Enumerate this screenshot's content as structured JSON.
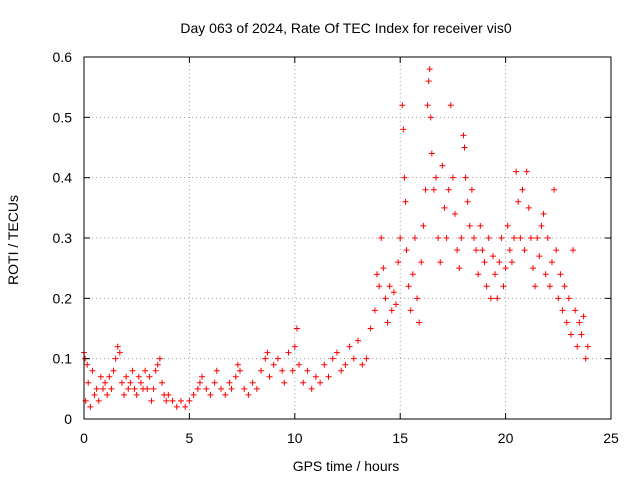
{
  "chart_data": {
    "type": "scatter",
    "title": "Day 063 of 2024, Rate Of TEC Index for receiver vis0",
    "xlabel": "GPS time / hours",
    "ylabel": "ROTI / TECUs",
    "xlim": [
      0,
      25
    ],
    "ylim": [
      0,
      0.6
    ],
    "xticks": [
      0,
      5,
      10,
      15,
      20,
      25
    ],
    "yticks": [
      0,
      0.1,
      0.2,
      0.3,
      0.4,
      0.5,
      0.6
    ],
    "xtick_labels": [
      "0",
      "5",
      "10",
      "15",
      "20",
      "25"
    ],
    "ytick_labels": [
      "0",
      "0.1",
      "0.2",
      "0.3",
      "0.4",
      "0.5",
      "0.6"
    ],
    "grid": true,
    "marker": "+",
    "color": "#ff0000",
    "series": [
      {
        "name": "ROTI",
        "points": [
          [
            0.0,
            0.11
          ],
          [
            0.05,
            0.1
          ],
          [
            0.08,
            0.03
          ],
          [
            0.15,
            0.09
          ],
          [
            0.2,
            0.06
          ],
          [
            0.3,
            0.02
          ],
          [
            0.4,
            0.08
          ],
          [
            0.5,
            0.04
          ],
          [
            0.6,
            0.05
          ],
          [
            0.7,
            0.03
          ],
          [
            0.8,
            0.07
          ],
          [
            0.9,
            0.05
          ],
          [
            1.0,
            0.06
          ],
          [
            1.1,
            0.04
          ],
          [
            1.2,
            0.07
          ],
          [
            1.3,
            0.05
          ],
          [
            1.4,
            0.08
          ],
          [
            1.5,
            0.1
          ],
          [
            1.6,
            0.12
          ],
          [
            1.7,
            0.11
          ],
          [
            1.8,
            0.06
          ],
          [
            1.9,
            0.04
          ],
          [
            2.0,
            0.07
          ],
          [
            2.1,
            0.05
          ],
          [
            2.2,
            0.06
          ],
          [
            2.3,
            0.08
          ],
          [
            2.4,
            0.05
          ],
          [
            2.5,
            0.04
          ],
          [
            2.6,
            0.07
          ],
          [
            2.7,
            0.06
          ],
          [
            2.8,
            0.05
          ],
          [
            2.9,
            0.08
          ],
          [
            3.0,
            0.05
          ],
          [
            3.1,
            0.07
          ],
          [
            3.2,
            0.03
          ],
          [
            3.3,
            0.05
          ],
          [
            3.4,
            0.08
          ],
          [
            3.5,
            0.09
          ],
          [
            3.6,
            0.1
          ],
          [
            3.7,
            0.06
          ],
          [
            3.8,
            0.04
          ],
          [
            3.9,
            0.03
          ],
          [
            4.0,
            0.04
          ],
          [
            4.2,
            0.03
          ],
          [
            4.4,
            0.02
          ],
          [
            4.6,
            0.03
          ],
          [
            4.8,
            0.02
          ],
          [
            5.0,
            0.03
          ],
          [
            5.2,
            0.04
          ],
          [
            5.4,
            0.05
          ],
          [
            5.5,
            0.06
          ],
          [
            5.6,
            0.07
          ],
          [
            5.8,
            0.05
          ],
          [
            6.0,
            0.04
          ],
          [
            6.2,
            0.06
          ],
          [
            6.3,
            0.08
          ],
          [
            6.5,
            0.05
          ],
          [
            6.7,
            0.04
          ],
          [
            6.9,
            0.06
          ],
          [
            7.0,
            0.05
          ],
          [
            7.2,
            0.07
          ],
          [
            7.3,
            0.09
          ],
          [
            7.4,
            0.08
          ],
          [
            7.6,
            0.05
          ],
          [
            7.8,
            0.04
          ],
          [
            8.0,
            0.06
          ],
          [
            8.2,
            0.05
          ],
          [
            8.4,
            0.08
          ],
          [
            8.6,
            0.1
          ],
          [
            8.7,
            0.11
          ],
          [
            8.8,
            0.07
          ],
          [
            9.0,
            0.09
          ],
          [
            9.2,
            0.1
          ],
          [
            9.4,
            0.08
          ],
          [
            9.5,
            0.06
          ],
          [
            9.7,
            0.11
          ],
          [
            9.9,
            0.08
          ],
          [
            10.0,
            0.12
          ],
          [
            10.1,
            0.15
          ],
          [
            10.2,
            0.09
          ],
          [
            10.4,
            0.06
          ],
          [
            10.6,
            0.08
          ],
          [
            10.8,
            0.05
          ],
          [
            11.0,
            0.07
          ],
          [
            11.2,
            0.06
          ],
          [
            11.4,
            0.09
          ],
          [
            11.6,
            0.07
          ],
          [
            11.8,
            0.1
          ],
          [
            12.0,
            0.11
          ],
          [
            12.2,
            0.08
          ],
          [
            12.4,
            0.09
          ],
          [
            12.6,
            0.12
          ],
          [
            12.8,
            0.1
          ],
          [
            13.0,
            0.13
          ],
          [
            13.2,
            0.09
          ],
          [
            13.4,
            0.1
          ],
          [
            13.6,
            0.15
          ],
          [
            13.8,
            0.18
          ],
          [
            13.9,
            0.24
          ],
          [
            14.0,
            0.22
          ],
          [
            14.1,
            0.3
          ],
          [
            14.2,
            0.25
          ],
          [
            14.3,
            0.2
          ],
          [
            14.4,
            0.16
          ],
          [
            14.5,
            0.22
          ],
          [
            14.6,
            0.18
          ],
          [
            14.7,
            0.21
          ],
          [
            14.8,
            0.19
          ],
          [
            14.9,
            0.26
          ],
          [
            15.0,
            0.3
          ],
          [
            15.1,
            0.52
          ],
          [
            15.15,
            0.48
          ],
          [
            15.2,
            0.4
          ],
          [
            15.25,
            0.36
          ],
          [
            15.3,
            0.28
          ],
          [
            15.4,
            0.22
          ],
          [
            15.5,
            0.18
          ],
          [
            15.6,
            0.24
          ],
          [
            15.7,
            0.3
          ],
          [
            15.8,
            0.2
          ],
          [
            15.9,
            0.16
          ],
          [
            16.0,
            0.26
          ],
          [
            16.1,
            0.32
          ],
          [
            16.2,
            0.38
          ],
          [
            16.3,
            0.52
          ],
          [
            16.35,
            0.56
          ],
          [
            16.4,
            0.58
          ],
          [
            16.45,
            0.5
          ],
          [
            16.5,
            0.44
          ],
          [
            16.6,
            0.38
          ],
          [
            16.7,
            0.4
          ],
          [
            16.8,
            0.3
          ],
          [
            16.9,
            0.26
          ],
          [
            17.0,
            0.42
          ],
          [
            17.1,
            0.35
          ],
          [
            17.2,
            0.3
          ],
          [
            17.3,
            0.38
          ],
          [
            17.4,
            0.52
          ],
          [
            17.5,
            0.4
          ],
          [
            17.6,
            0.34
          ],
          [
            17.7,
            0.28
          ],
          [
            17.8,
            0.25
          ],
          [
            17.9,
            0.3
          ],
          [
            18.0,
            0.47
          ],
          [
            18.05,
            0.45
          ],
          [
            18.1,
            0.4
          ],
          [
            18.2,
            0.36
          ],
          [
            18.3,
            0.32
          ],
          [
            18.4,
            0.38
          ],
          [
            18.5,
            0.3
          ],
          [
            18.6,
            0.28
          ],
          [
            18.7,
            0.24
          ],
          [
            18.8,
            0.32
          ],
          [
            18.9,
            0.28
          ],
          [
            19.0,
            0.26
          ],
          [
            19.1,
            0.22
          ],
          [
            19.2,
            0.3
          ],
          [
            19.3,
            0.2
          ],
          [
            19.4,
            0.27
          ],
          [
            19.5,
            0.24
          ],
          [
            19.6,
            0.2
          ],
          [
            19.7,
            0.26
          ],
          [
            19.8,
            0.3
          ],
          [
            19.9,
            0.22
          ],
          [
            20.0,
            0.25
          ],
          [
            20.1,
            0.32
          ],
          [
            20.2,
            0.28
          ],
          [
            20.3,
            0.26
          ],
          [
            20.4,
            0.3
          ],
          [
            20.5,
            0.41
          ],
          [
            20.6,
            0.36
          ],
          [
            20.7,
            0.3
          ],
          [
            20.8,
            0.38
          ],
          [
            20.9,
            0.28
          ],
          [
            21.0,
            0.41
          ],
          [
            21.1,
            0.35
          ],
          [
            21.2,
            0.3
          ],
          [
            21.3,
            0.25
          ],
          [
            21.4,
            0.22
          ],
          [
            21.5,
            0.3
          ],
          [
            21.6,
            0.27
          ],
          [
            21.7,
            0.32
          ],
          [
            21.8,
            0.34
          ],
          [
            21.9,
            0.24
          ],
          [
            22.0,
            0.3
          ],
          [
            22.1,
            0.22
          ],
          [
            22.2,
            0.26
          ],
          [
            22.3,
            0.38
          ],
          [
            22.4,
            0.28
          ],
          [
            22.5,
            0.2
          ],
          [
            22.6,
            0.24
          ],
          [
            22.7,
            0.18
          ],
          [
            22.8,
            0.22
          ],
          [
            22.9,
            0.16
          ],
          [
            23.0,
            0.2
          ],
          [
            23.1,
            0.14
          ],
          [
            23.2,
            0.28
          ],
          [
            23.3,
            0.18
          ],
          [
            23.4,
            0.12
          ],
          [
            23.5,
            0.16
          ],
          [
            23.6,
            0.14
          ],
          [
            23.7,
            0.17
          ],
          [
            23.8,
            0.1
          ],
          [
            23.9,
            0.12
          ]
        ]
      }
    ]
  }
}
